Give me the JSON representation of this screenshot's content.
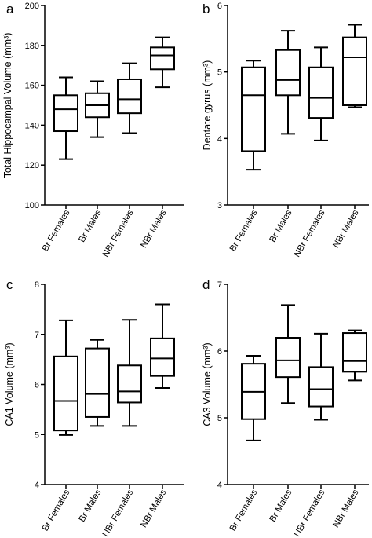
{
  "chart_data": [
    {
      "type": "box",
      "panel_label": "a",
      "ylabel": "Total Hippocampal Volume (mm³)",
      "ylim": [
        100,
        200
      ],
      "yticks": [
        "100",
        "120",
        "140",
        "160",
        "180",
        "200"
      ],
      "categories": [
        "Br Females",
        "Br Males",
        "NBr Females",
        "NBr Males"
      ],
      "boxes": [
        {
          "min": 123,
          "q1": 137,
          "median": 148,
          "q3": 155,
          "max": 164
        },
        {
          "min": 134,
          "q1": 144,
          "median": 150,
          "q3": 156,
          "max": 162
        },
        {
          "min": 136,
          "q1": 146,
          "median": 153,
          "q3": 163,
          "max": 171
        },
        {
          "min": 159,
          "q1": 168,
          "median": 175,
          "q3": 179,
          "max": 184
        }
      ]
    },
    {
      "type": "box",
      "panel_label": "b",
      "ylabel": "Dentate gyrus (mm³)",
      "ylim": [
        3,
        6
      ],
      "yticks": [
        "3",
        "4",
        "5",
        "6"
      ],
      "categories": [
        "Br Females",
        "Br Males",
        "NBr Females",
        "NBr Males"
      ],
      "boxes": [
        {
          "min": 3.53,
          "q1": 3.81,
          "median": 4.65,
          "q3": 5.07,
          "max": 5.17
        },
        {
          "min": 4.07,
          "q1": 4.65,
          "median": 4.88,
          "q3": 5.33,
          "max": 5.62
        },
        {
          "min": 3.97,
          "q1": 4.31,
          "median": 4.61,
          "q3": 5.07,
          "max": 5.37
        },
        {
          "min": 4.47,
          "q1": 4.5,
          "median": 5.22,
          "q3": 5.52,
          "max": 5.71
        }
      ]
    },
    {
      "type": "box",
      "panel_label": "c",
      "ylabel": "CA1 Volume (mm³)",
      "ylim": [
        4,
        8
      ],
      "yticks": [
        "4",
        "5",
        "6",
        "7",
        "8"
      ],
      "categories": [
        "Br Females",
        "Br Males",
        "NBr Females",
        "NBr Males"
      ],
      "boxes": [
        {
          "min": 4.99,
          "q1": 5.08,
          "median": 5.67,
          "q3": 6.56,
          "max": 7.28
        },
        {
          "min": 5.17,
          "q1": 5.35,
          "median": 5.81,
          "q3": 6.72,
          "max": 6.89
        },
        {
          "min": 5.17,
          "q1": 5.64,
          "median": 5.86,
          "q3": 6.38,
          "max": 7.29
        },
        {
          "min": 5.93,
          "q1": 6.17,
          "median": 6.52,
          "q3": 6.92,
          "max": 7.6
        }
      ]
    },
    {
      "type": "box",
      "panel_label": "d",
      "ylabel": "CA3 Volume (mm³)",
      "ylim": [
        4,
        7
      ],
      "yticks": [
        "4",
        "5",
        "6",
        "7"
      ],
      "categories": [
        "Br Females",
        "Br Males",
        "NBr Females",
        "NBr Males"
      ],
      "boxes": [
        {
          "min": 4.66,
          "q1": 4.98,
          "median": 5.39,
          "q3": 5.81,
          "max": 5.93
        },
        {
          "min": 5.22,
          "q1": 5.61,
          "median": 5.86,
          "q3": 6.2,
          "max": 6.69
        },
        {
          "min": 4.97,
          "q1": 5.17,
          "median": 5.43,
          "q3": 5.76,
          "max": 6.26
        },
        {
          "min": 5.56,
          "q1": 5.69,
          "median": 5.85,
          "q3": 6.27,
          "max": 6.31
        }
      ]
    }
  ]
}
